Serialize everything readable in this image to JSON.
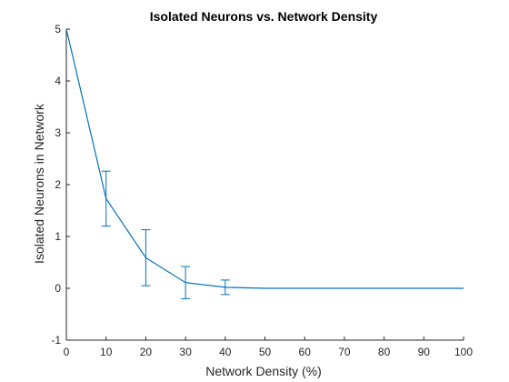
{
  "chart_data": {
    "type": "line",
    "title": "Isolated Neurons vs. Network Density",
    "xlabel": "Network Density (%)",
    "ylabel": "Isolated Neurons in Network",
    "xlim": [
      0,
      100
    ],
    "ylim": [
      -1,
      5
    ],
    "xticks": [
      0,
      10,
      20,
      30,
      40,
      50,
      60,
      70,
      80,
      90,
      100
    ],
    "yticks": [
      -1,
      0,
      1,
      2,
      3,
      4,
      5
    ],
    "grid": false,
    "legend": "none",
    "series": [
      {
        "x": [
          0,
          10,
          20,
          30,
          40,
          50,
          60,
          70,
          80,
          90,
          100
        ],
        "y": [
          5,
          1.73,
          0.59,
          0.11,
          0.02,
          0,
          0,
          0,
          0,
          0,
          0
        ],
        "error": [
          0,
          0.53,
          0.54,
          0.31,
          0.14,
          0,
          0,
          0,
          0,
          0,
          0
        ],
        "color": "#0072BD"
      }
    ]
  }
}
